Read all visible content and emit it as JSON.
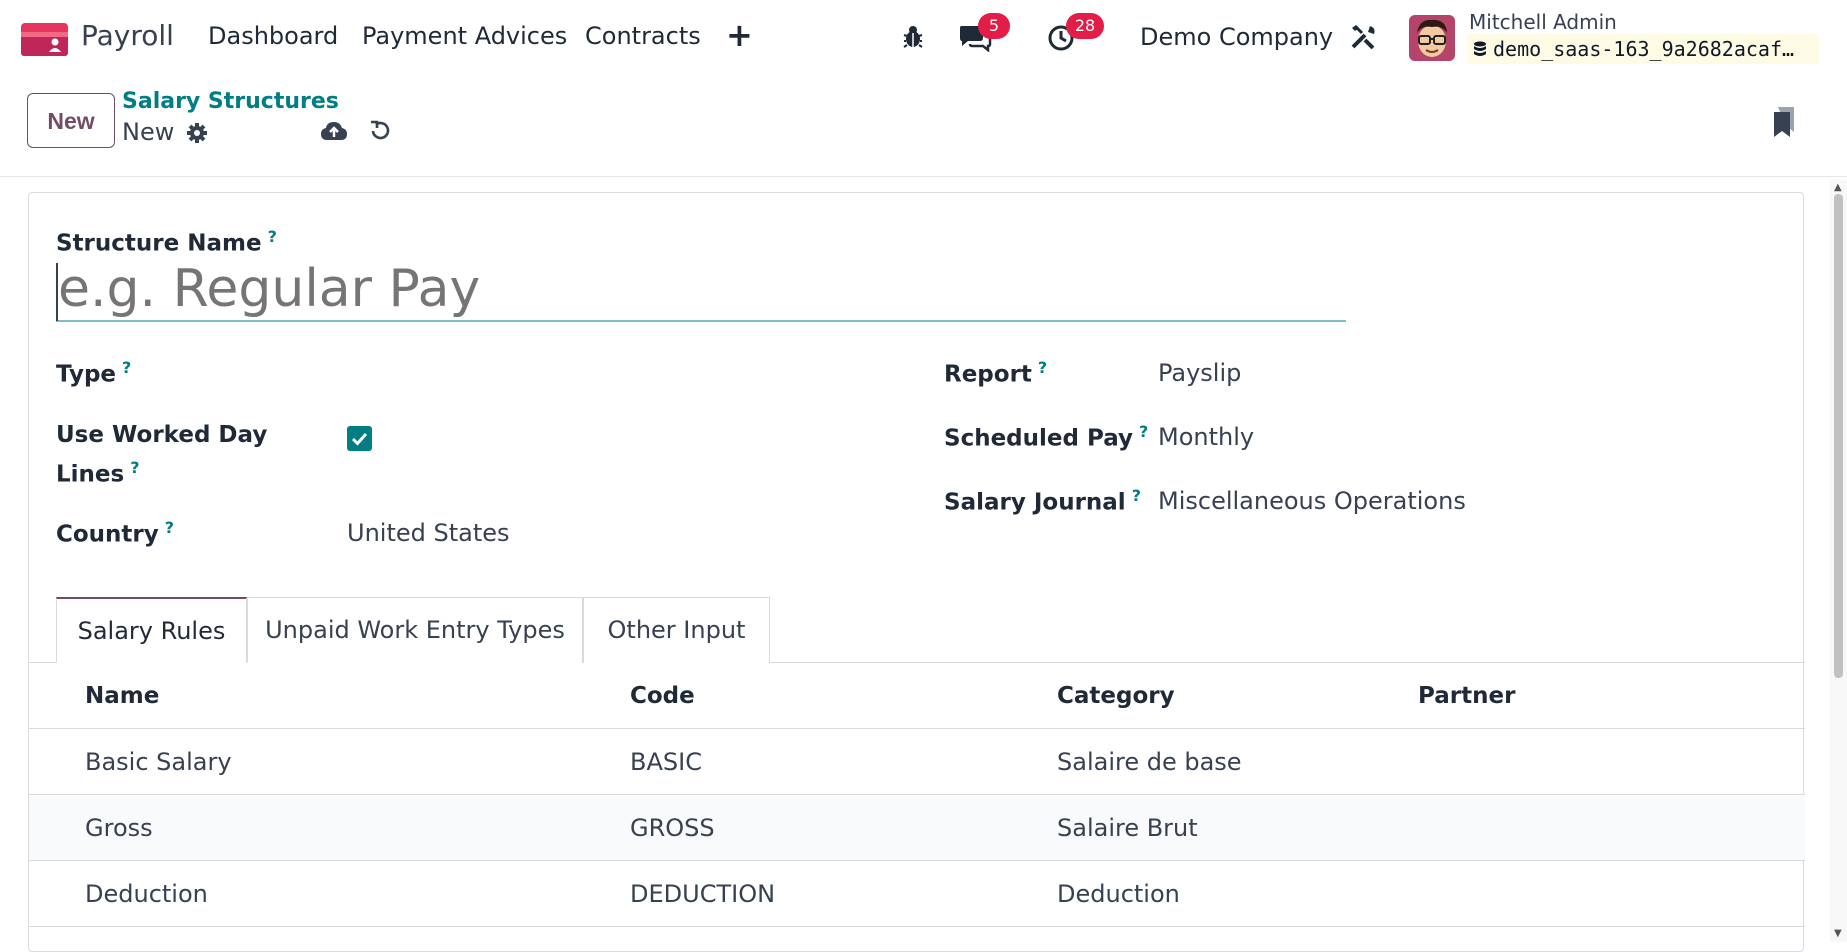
{
  "topnav": {
    "app_name": "Payroll",
    "menu": [
      "Dashboard",
      "Payment Advices",
      "Contracts"
    ],
    "messages_count": "5",
    "activities_count": "28",
    "company": "Demo Company",
    "user_name": "Mitchell Admin",
    "database": "demo_saas-163_9a2682acaf…"
  },
  "control_panel": {
    "new_label": "New",
    "breadcrumb": "Salary Structures",
    "record_name": "New"
  },
  "form": {
    "structure_name_label": "Structure Name",
    "structure_name_placeholder": "e.g. Regular Pay",
    "structure_name_value": "",
    "type_label": "Type",
    "type_value": "",
    "use_worked_day_label_1": "Use Worked Day",
    "use_worked_day_label_2": "Lines",
    "use_worked_day_checked": true,
    "country_label": "Country",
    "country_value": "United States",
    "report_label": "Report",
    "report_value": "Payslip",
    "scheduled_pay_label": "Scheduled Pay",
    "scheduled_pay_value": "Monthly",
    "salary_journal_label": "Salary Journal",
    "salary_journal_value": "Miscellaneous Operations",
    "help_mark": "?"
  },
  "tabs": [
    "Salary Rules",
    "Unpaid Work Entry Types",
    "Other Input"
  ],
  "active_tab": "Salary Rules",
  "table": {
    "headers": [
      "Name",
      "Code",
      "Category",
      "Partner"
    ],
    "rows": [
      [
        "Basic Salary",
        "BASIC",
        "Salaire de base",
        ""
      ],
      [
        "Gross",
        "GROSS",
        "Salaire Brut",
        ""
      ],
      [
        "Deduction",
        "DEDUCTION",
        "Deduction",
        ""
      ]
    ]
  },
  "colors": {
    "brand": "#714b67",
    "accent": "#017e84",
    "badge": "#e11d48"
  }
}
